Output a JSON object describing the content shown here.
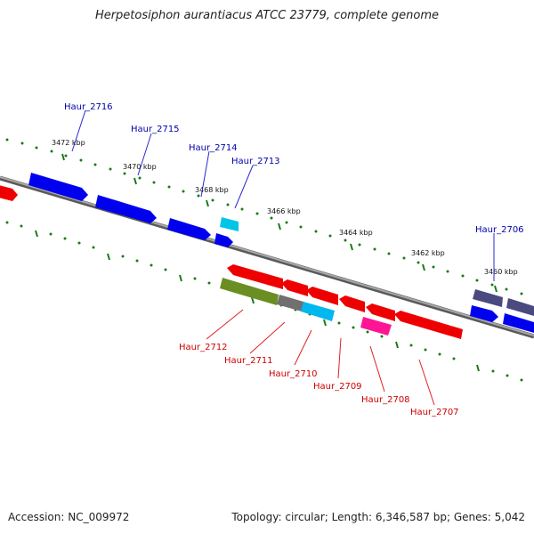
{
  "title": "Herpetosiphon aurantiacus ATCC 23779, complete genome",
  "footer": {
    "accession": "Accession: NC_009972",
    "summary": "Topology: circular; Length: 6,346,587 bp; Genes: 5,042"
  },
  "scale_labels": [
    "3472 kbp",
    "3470 kbp",
    "3468 kbp",
    "3466 kbp",
    "3464 kbp",
    "3462 kbp",
    "3460 kbp"
  ],
  "gene_labels_top": [
    "Haur_2716",
    "Haur_2715",
    "Haur_2714",
    "Haur_2713",
    "Haur_2706"
  ],
  "gene_labels_bottom": [
    "Haur_2712",
    "Haur_2711",
    "Haur_2710",
    "Haur_2709",
    "Haur_2708",
    "Haur_2707"
  ],
  "colors": {
    "backbone": "#808080",
    "forward_cds": "#0000ff",
    "reverse_cds": "#ff0000",
    "tick": "#1a7a1a",
    "olive": "#6b8e23",
    "grey_cds": "#707070",
    "cyan": "#00b7f0",
    "magenta": "#ff1493",
    "slate": "#4a4a80",
    "top_label": "#0000aa",
    "bottom_label": "#cc0000"
  }
}
